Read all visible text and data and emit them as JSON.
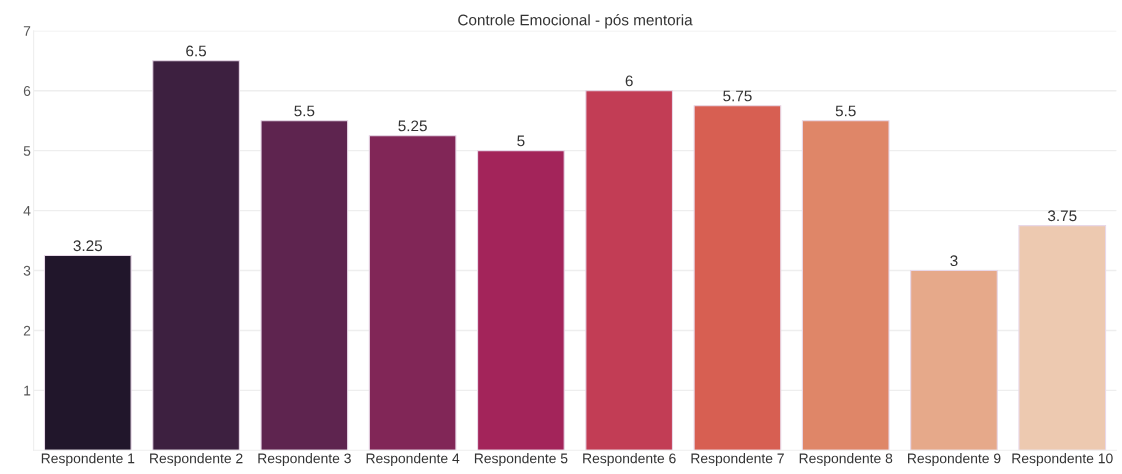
{
  "chart_data": {
    "type": "bar",
    "title": "Controle Emocional - pós mentoria",
    "categories": [
      "Respondente 1",
      "Respondente 2",
      "Respondente 3",
      "Respondente 4",
      "Respondente 5",
      "Respondente 6",
      "Respondente 7",
      "Respondente 8",
      "Respondente 9",
      "Respondente 10"
    ],
    "values": [
      3.25,
      6.5,
      5.5,
      5.25,
      5,
      6,
      5.75,
      5.5,
      3,
      3.75
    ],
    "colors": [
      "#21162b",
      "#3d2040",
      "#5e244f",
      "#812657",
      "#a3245a",
      "#c23d55",
      "#d75f52",
      "#df8668",
      "#e6a98a",
      "#edc9b0"
    ],
    "ylim": [
      0,
      7
    ],
    "yticks": [
      1,
      2,
      3,
      4,
      5,
      6,
      7
    ],
    "grid": "y",
    "data_labels": true
  }
}
